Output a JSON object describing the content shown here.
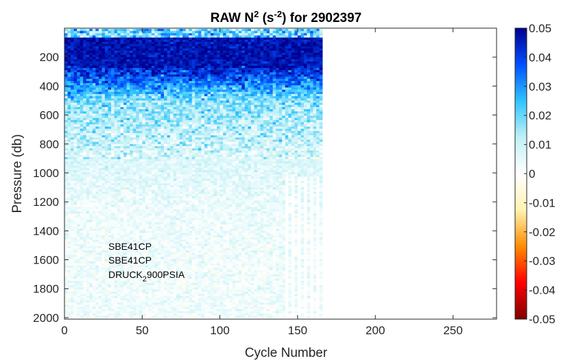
{
  "chart_data": {
    "type": "heatmap",
    "title": {
      "prefix": "RAW N",
      "sup1": "2",
      "middle": " (s",
      "sup2": "-2",
      "suffix": ") for 2902397"
    },
    "xlabel": "Cycle Number",
    "ylabel": "Pressure (db)",
    "xlim": [
      0,
      278
    ],
    "ylim": [
      0,
      2010
    ],
    "y_reversed": true,
    "x_ticks": [
      0,
      50,
      100,
      150,
      200,
      250
    ],
    "y_ticks": [
      200,
      400,
      600,
      800,
      1000,
      1200,
      1400,
      1600,
      1800,
      2000
    ],
    "colorbar": {
      "colormap": "jet-with-white-center",
      "range": [
        -0.05,
        0.05
      ],
      "ticks": [
        "0.05",
        "0.04",
        "0.03",
        "0.02",
        "0.01",
        "0",
        "-0.01",
        "-0.02",
        "-0.03",
        "-0.04",
        "-0.05"
      ],
      "colors": [
        "#7f0000",
        "#ff0000",
        "#ff8c00",
        "#fff3b0",
        "#ffffff",
        "#bff0f5",
        "#2fc4ff",
        "#0050ff",
        "#00008f"
      ]
    },
    "data_extent": {
      "cycle_min": 1,
      "cycle_max": 165,
      "pressure_min": 5,
      "pressure_max": 2000
    },
    "data_description": "Values near the surface (pressure < ~250 db) are mostly 0.04 to 0.05; decreasing to ~0.01 by 800 db and near 0 to 0.005 below 1200 db.",
    "annotations": [
      "SBE41CP",
      "SBE41CP",
      "DRUCK",
      "2",
      "900PSIA"
    ]
  }
}
